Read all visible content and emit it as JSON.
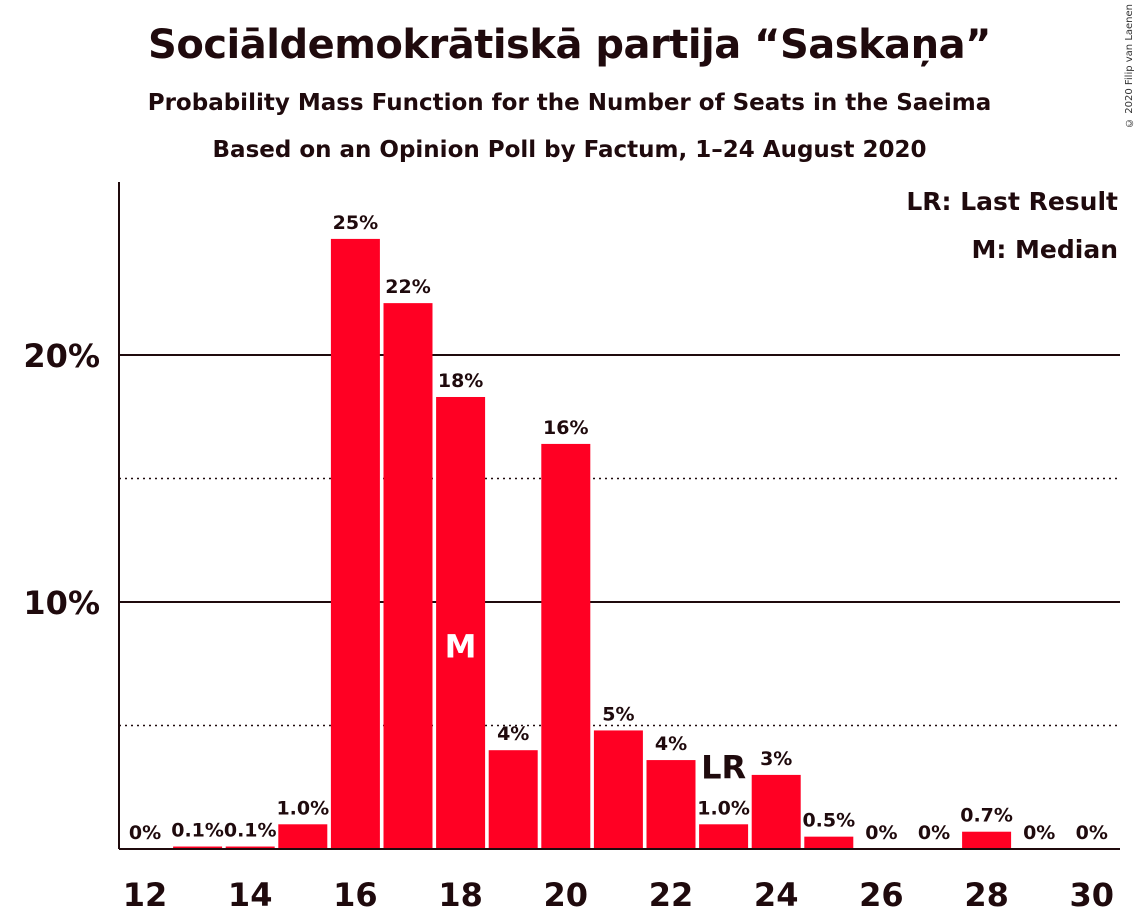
{
  "title": "Sociāldemokrātiskā partija “Saskaņa”",
  "subtitle1": "Probability Mass Function for the Number of Seats in the Saeima",
  "subtitle2": "Based on an Opinion Poll by Factum, 1–24 August 2020",
  "copyright": "© 2020 Filip van Laenen",
  "legend": {
    "last_result": "LR: Last Result",
    "median": "M: Median"
  },
  "colors": {
    "bar": "#ff0023",
    "text": "#1f0a0d"
  },
  "chart_data": {
    "type": "bar",
    "x": [
      12,
      13,
      14,
      15,
      16,
      17,
      18,
      19,
      20,
      21,
      22,
      23,
      24,
      25,
      26,
      27,
      28,
      29,
      30
    ],
    "values": [
      0,
      0.1,
      0.1,
      1.0,
      24.7,
      22.1,
      18.3,
      4.0,
      16.4,
      4.8,
      3.6,
      1.0,
      3.0,
      0.5,
      0,
      0,
      0.7,
      0,
      0
    ],
    "labels": [
      "0%",
      "0.1%",
      "0.1%",
      "1.0%",
      "25%",
      "22%",
      "18%",
      "4%",
      "16%",
      "5%",
      "4%",
      "1.0%",
      "3%",
      "0.5%",
      "0%",
      "0%",
      "0.7%",
      "0%",
      "0%"
    ],
    "x_ticks": [
      "12",
      "14",
      "16",
      "18",
      "20",
      "22",
      "24",
      "26",
      "28",
      "30"
    ],
    "y_ticks": [
      {
        "value": 10,
        "label": "10%"
      },
      {
        "value": 20,
        "label": "20%"
      }
    ],
    "dotted_gridlines": [
      5,
      15
    ],
    "ylim": [
      0,
      27
    ],
    "median": {
      "seats": 18,
      "label": "M"
    },
    "last_result": {
      "seats": 23,
      "label": "LR"
    }
  }
}
